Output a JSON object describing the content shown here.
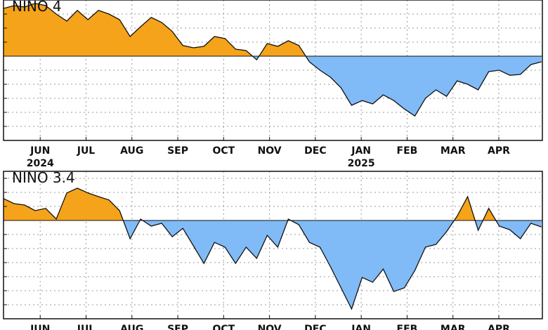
{
  "chart_data": [
    {
      "type": "area",
      "title": "NINO  4",
      "x": [
        -0.8,
        -0.57,
        -0.34,
        -0.11,
        0.12,
        0.35,
        0.58,
        0.81,
        1.04,
        1.27,
        1.5,
        1.73,
        1.96,
        2.19,
        2.42,
        2.65,
        2.88,
        3.11,
        3.34,
        3.57,
        3.8,
        4.03,
        4.26,
        4.49,
        4.72,
        4.95,
        5.18,
        5.41,
        5.64,
        5.87,
        6.1,
        6.33,
        6.56,
        6.79,
        7.02,
        7.25,
        7.48,
        7.71,
        7.94,
        8.17,
        8.4,
        8.63,
        8.86,
        9.09,
        9.32,
        9.55,
        9.78,
        10.01,
        10.24,
        10.47,
        10.7,
        10.93
      ],
      "values": [
        1.7,
        1.8,
        1.75,
        1.88,
        1.8,
        1.5,
        1.25,
        1.63,
        1.3,
        1.63,
        1.5,
        1.3,
        0.7,
        1.05,
        1.38,
        1.2,
        0.88,
        0.38,
        0.3,
        0.35,
        0.7,
        0.63,
        0.25,
        0.2,
        -0.13,
        0.45,
        0.35,
        0.55,
        0.38,
        -0.2,
        -0.5,
        -0.75,
        -1.13,
        -1.75,
        -1.58,
        -1.7,
        -1.38,
        -1.58,
        -1.88,
        -2.13,
        -1.5,
        -1.2,
        -1.43,
        -0.88,
        -1.0,
        -1.2,
        -0.55,
        -0.5,
        -0.68,
        -0.65,
        -0.3,
        -0.2
      ],
      "xlim": [
        -0.8,
        10.95
      ],
      "xticks": [
        {
          "value": 0,
          "label": "JUN"
        },
        {
          "value": 1,
          "label": "JUL"
        },
        {
          "value": 2,
          "label": "AUG"
        },
        {
          "value": 3,
          "label": "SEP"
        },
        {
          "value": 4,
          "label": "OCT"
        },
        {
          "value": 5,
          "label": "NOV"
        },
        {
          "value": 6,
          "label": "DEC"
        },
        {
          "value": 7,
          "label": "JAN"
        },
        {
          "value": 8,
          "label": "FEB"
        },
        {
          "value": 9,
          "label": "MAR"
        },
        {
          "value": 10,
          "label": "APR"
        }
      ],
      "year_labels": [
        {
          "value": 0,
          "label": "2024"
        },
        {
          "value": 7,
          "label": "2025"
        }
      ],
      "ylim": [
        -3,
        2
      ],
      "yticks": [
        -3,
        -2.5,
        -2,
        -1.5,
        -1,
        -0.5,
        0,
        0.5,
        1,
        1.5,
        2
      ],
      "grid": true,
      "positive_color": "#f5a31a",
      "negative_color": "#80bbf7"
    },
    {
      "type": "area",
      "title": "NINO  3.4",
      "x": [
        -0.8,
        -0.57,
        -0.34,
        -0.11,
        0.12,
        0.35,
        0.58,
        0.81,
        1.04,
        1.27,
        1.5,
        1.73,
        1.96,
        2.19,
        2.42,
        2.65,
        2.88,
        3.11,
        3.34,
        3.57,
        3.8,
        4.03,
        4.26,
        4.49,
        4.72,
        4.95,
        5.18,
        5.41,
        5.64,
        5.87,
        6.1,
        6.33,
        6.56,
        6.79,
        7.02,
        7.25,
        7.48,
        7.71,
        7.94,
        8.17,
        8.4,
        8.63,
        8.86,
        9.09,
        9.32,
        9.55,
        9.78,
        10.01,
        10.24,
        10.47,
        10.7,
        10.93
      ],
      "values": [
        0.78,
        0.6,
        0.55,
        0.35,
        0.43,
        0.05,
        0.98,
        1.15,
        0.98,
        0.85,
        0.73,
        0.35,
        -0.65,
        0.05,
        -0.2,
        -0.1,
        -0.58,
        -0.28,
        -0.9,
        -1.53,
        -0.78,
        -0.95,
        -1.53,
        -0.95,
        -1.35,
        -0.53,
        -0.95,
        0.05,
        -0.15,
        -0.78,
        -0.95,
        -1.65,
        -2.4,
        -3.15,
        -2.03,
        -2.2,
        -1.73,
        -2.53,
        -2.4,
        -1.78,
        -0.95,
        -0.85,
        -0.4,
        0.15,
        0.85,
        -0.35,
        0.43,
        -0.2,
        -0.33,
        -0.65,
        -0.1,
        -0.23
      ],
      "xlim": [
        -0.8,
        10.95
      ],
      "xticks": [
        {
          "value": 0,
          "label": "JUN"
        },
        {
          "value": 1,
          "label": "JUL"
        },
        {
          "value": 2,
          "label": "AUG"
        },
        {
          "value": 3,
          "label": "SEP"
        },
        {
          "value": 4,
          "label": "OCT"
        },
        {
          "value": 5,
          "label": "NOV"
        },
        {
          "value": 6,
          "label": "DEC"
        },
        {
          "value": 7,
          "label": "JAN"
        },
        {
          "value": 8,
          "label": "FEB"
        },
        {
          "value": 9,
          "label": "MAR"
        },
        {
          "value": 10,
          "label": "APR"
        }
      ],
      "ylim": [
        -3.5,
        1.75
      ],
      "yticks": [
        -3.5,
        -3,
        -2.5,
        -2,
        -1.5,
        -1,
        -0.5,
        0,
        0.5,
        1,
        1.5
      ],
      "grid": true,
      "positive_color": "#f5a31a",
      "negative_color": "#80bbf7"
    }
  ]
}
